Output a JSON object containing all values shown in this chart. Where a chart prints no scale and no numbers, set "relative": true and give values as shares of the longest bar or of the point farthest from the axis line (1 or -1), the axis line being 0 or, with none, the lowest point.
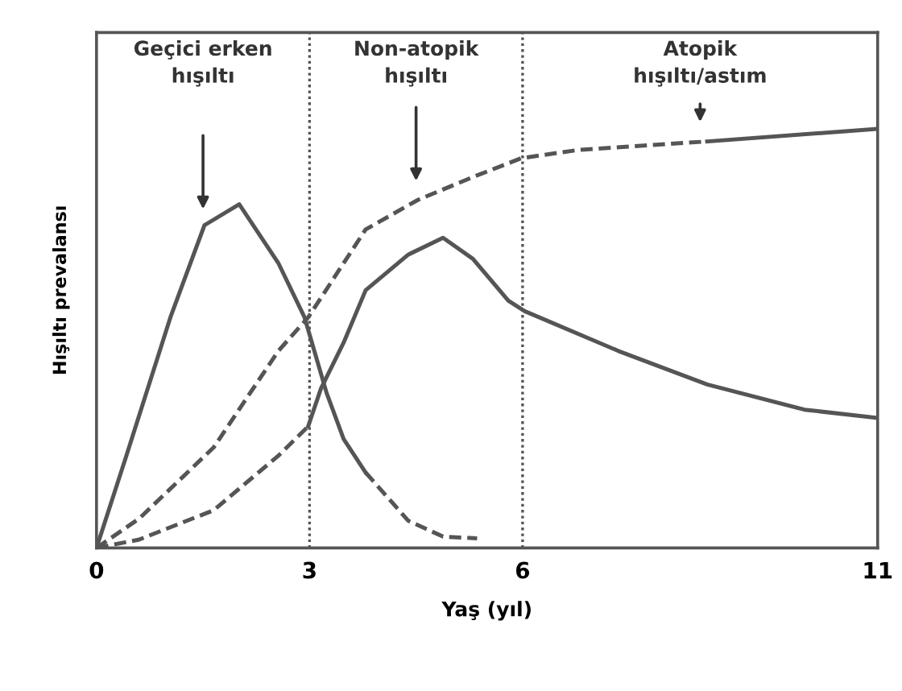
{
  "chart_data": {
    "type": "line",
    "relative": true,
    "xlabel": "Yaş (yıl)",
    "ylabel": "Hışıltı prevalansı",
    "xlim": [
      0,
      11
    ],
    "xticks": [
      0,
      3,
      6,
      11
    ],
    "grid": false,
    "marker": "none",
    "series": [
      {
        "color": "#555555",
        "line_style": "solid",
        "x": [
          0,
          0.42,
          1.04,
          1.52,
          2.01,
          2.56,
          2.93,
          3.24,
          3.48,
          3.79
        ],
        "values": [
          0,
          0.22,
          0.55,
          0.77,
          0.82,
          0.68,
          0.55,
          0.37,
          0.26,
          0.18
        ]
      },
      {
        "color": "#555555",
        "line_style": "dashed",
        "x": [
          3.79,
          4.39,
          4.88,
          5.36
        ],
        "values": [
          0.18,
          0.065,
          0.027,
          0.023
        ]
      },
      {
        "color": "#555555",
        "line_style": "dashed",
        "x": [
          0,
          0.6,
          1.65,
          2.56,
          2.98
        ],
        "values": [
          0,
          0.02,
          0.09,
          0.22,
          0.29
        ]
      },
      {
        "color": "#555555",
        "line_style": "solid",
        "x": [
          2.98,
          3.16,
          3.48,
          3.79,
          4.39,
          4.88,
          5.3,
          5.8,
          6.03,
          7.35,
          8.6,
          9.97,
          11
        ],
        "values": [
          0.29,
          0.38,
          0.49,
          0.615,
          0.7,
          0.74,
          0.69,
          0.59,
          0.565,
          0.47,
          0.39,
          0.33,
          0.31
        ]
      },
      {
        "color": "#555555",
        "line_style": "dashed",
        "x": [
          0,
          0.6,
          1.65,
          2.56,
          2.98,
          3.79,
          4.52,
          5.3,
          5.98,
          6.8,
          8.6
        ],
        "values": [
          0,
          0.07,
          0.24,
          0.47,
          0.55,
          0.76,
          0.83,
          0.885,
          0.93,
          0.95,
          0.97
        ]
      },
      {
        "color": "#555555",
        "line_style": "solid",
        "x": [
          8.6,
          11
        ],
        "values": [
          0.97,
          1.0
        ]
      }
    ],
    "ref_lines": [
      {
        "axis": "x",
        "value": 3,
        "line_style": "dotted",
        "color": "#555555"
      },
      {
        "axis": "x",
        "value": 6,
        "line_style": "dotted",
        "color": "#555555"
      }
    ],
    "annotations": [
      "Geçici erken\nhışıltı",
      "Non-atopik\nhışıltı",
      "Atopik\nhışıltı/astım"
    ]
  }
}
